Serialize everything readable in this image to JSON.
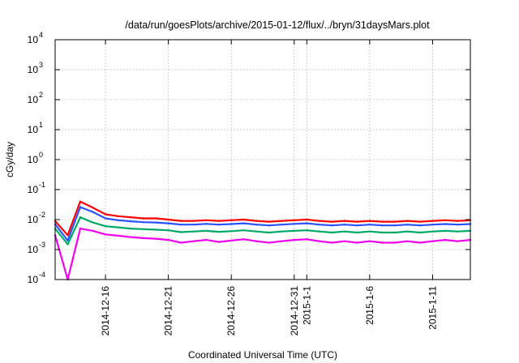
{
  "chart_data": {
    "type": "line",
    "title": "/data/run/goesPlots/archive/2015-01-12/flux/../bryn/31daysMars.plot",
    "xlabel": "Coordinated Universal Time (UTC)",
    "ylabel": "cGy/day",
    "yscale": "log",
    "ylim": [
      0.0001,
      10000
    ],
    "xlim": [
      "2014-12-12",
      "2015-01-14"
    ],
    "grid": true,
    "y_ticks": [
      {
        "value": 0.0001,
        "base": "10",
        "exp": "-4"
      },
      {
        "value": 0.001,
        "base": "10",
        "exp": "-3"
      },
      {
        "value": 0.01,
        "base": "10",
        "exp": "-2"
      },
      {
        "value": 0.1,
        "base": "10",
        "exp": "-1"
      },
      {
        "value": 1,
        "base": "10",
        "exp": "0"
      },
      {
        "value": 10,
        "base": "10",
        "exp": "1"
      },
      {
        "value": 100,
        "base": "10",
        "exp": "2"
      },
      {
        "value": 1000,
        "base": "10",
        "exp": "3"
      },
      {
        "value": 10000,
        "base": "10",
        "exp": "4"
      }
    ],
    "x_ticks": [
      {
        "date": "2014-12-16",
        "label": "2014-12-16"
      },
      {
        "date": "2014-12-21",
        "label": "2014-12-21"
      },
      {
        "date": "2014-12-26",
        "label": "2014-12-26"
      },
      {
        "date": "2014-12-31",
        "label": "2014-12-31"
      },
      {
        "date": "2015-01-01",
        "label": "2015-1-1"
      },
      {
        "date": "2015-01-06",
        "label": "2015-1-6"
      },
      {
        "date": "2015-01-11",
        "label": "2015-1-11"
      }
    ],
    "series": [
      {
        "color": "#ff0000",
        "dates": [
          "2014-12-12",
          "2014-12-13",
          "2014-12-14",
          "2014-12-15",
          "2014-12-16",
          "2014-12-17",
          "2014-12-18",
          "2014-12-19",
          "2014-12-20",
          "2014-12-21",
          "2014-12-22",
          "2014-12-23",
          "2014-12-24",
          "2014-12-25",
          "2014-12-26",
          "2014-12-27",
          "2014-12-28",
          "2014-12-29",
          "2014-12-30",
          "2014-12-31",
          "2015-01-01",
          "2015-01-02",
          "2015-01-03",
          "2015-01-04",
          "2015-01-05",
          "2015-01-06",
          "2015-01-07",
          "2015-01-08",
          "2015-01-09",
          "2015-01-10",
          "2015-01-11",
          "2015-01-12",
          "2015-01-13",
          "2015-01-14"
        ],
        "values": [
          0.009,
          0.003,
          0.04,
          0.025,
          0.015,
          0.013,
          0.012,
          0.011,
          0.011,
          0.01,
          0.009,
          0.009,
          0.0095,
          0.009,
          0.0095,
          0.01,
          0.009,
          0.0085,
          0.009,
          0.0095,
          0.01,
          0.009,
          0.0085,
          0.009,
          0.0085,
          0.009,
          0.0085,
          0.0085,
          0.009,
          0.0085,
          0.009,
          0.0095,
          0.009,
          0.0095
        ]
      },
      {
        "color": "#2a52ff",
        "dates": [
          "2014-12-12",
          "2014-12-13",
          "2014-12-14",
          "2014-12-15",
          "2014-12-16",
          "2014-12-17",
          "2014-12-18",
          "2014-12-19",
          "2014-12-20",
          "2014-12-21",
          "2014-12-22",
          "2014-12-23",
          "2014-12-24",
          "2014-12-25",
          "2014-12-26",
          "2014-12-27",
          "2014-12-28",
          "2014-12-29",
          "2014-12-30",
          "2014-12-31",
          "2015-01-01",
          "2015-01-02",
          "2015-01-03",
          "2015-01-04",
          "2015-01-05",
          "2015-01-06",
          "2015-01-07",
          "2015-01-08",
          "2015-01-09",
          "2015-01-10",
          "2015-01-11",
          "2015-01-12",
          "2015-01-13",
          "2015-01-14"
        ],
        "values": [
          0.007,
          0.002,
          0.026,
          0.018,
          0.011,
          0.0095,
          0.0088,
          0.0082,
          0.008,
          0.0075,
          0.0068,
          0.0068,
          0.0072,
          0.0068,
          0.0071,
          0.0075,
          0.0068,
          0.0064,
          0.0068,
          0.0072,
          0.0075,
          0.0068,
          0.0064,
          0.0068,
          0.0064,
          0.0068,
          0.0064,
          0.0064,
          0.0068,
          0.0064,
          0.0068,
          0.0071,
          0.0068,
          0.0071
        ]
      },
      {
        "color": "#00aa66",
        "dates": [
          "2014-12-12",
          "2014-12-13",
          "2014-12-14",
          "2014-12-15",
          "2014-12-16",
          "2014-12-17",
          "2014-12-18",
          "2014-12-19",
          "2014-12-20",
          "2014-12-21",
          "2014-12-22",
          "2014-12-23",
          "2014-12-24",
          "2014-12-25",
          "2014-12-26",
          "2014-12-27",
          "2014-12-28",
          "2014-12-29",
          "2014-12-30",
          "2014-12-31",
          "2015-01-01",
          "2015-01-02",
          "2015-01-03",
          "2015-01-04",
          "2015-01-05",
          "2015-01-06",
          "2015-01-07",
          "2015-01-08",
          "2015-01-09",
          "2015-01-10",
          "2015-01-11",
          "2015-01-12",
          "2015-01-13",
          "2015-01-14"
        ],
        "values": [
          0.005,
          0.0015,
          0.012,
          0.008,
          0.006,
          0.0055,
          0.005,
          0.0048,
          0.0046,
          0.0044,
          0.0038,
          0.004,
          0.0042,
          0.0039,
          0.0041,
          0.0044,
          0.004,
          0.0037,
          0.004,
          0.0042,
          0.0044,
          0.004,
          0.0037,
          0.004,
          0.0037,
          0.004,
          0.0037,
          0.0037,
          0.004,
          0.0037,
          0.004,
          0.0042,
          0.004,
          0.0042
        ]
      },
      {
        "color": "#ee00ee",
        "dates": [
          "2014-12-12",
          "2014-12-13",
          "2014-12-14",
          "2014-12-15",
          "2014-12-16",
          "2014-12-17",
          "2014-12-18",
          "2014-12-19",
          "2014-12-20",
          "2014-12-21",
          "2014-12-22",
          "2014-12-23",
          "2014-12-24",
          "2014-12-25",
          "2014-12-26",
          "2014-12-27",
          "2014-12-28",
          "2014-12-29",
          "2014-12-30",
          "2014-12-31",
          "2015-01-01",
          "2015-01-02",
          "2015-01-03",
          "2015-01-04",
          "2015-01-05",
          "2015-01-06",
          "2015-01-07",
          "2015-01-08",
          "2015-01-09",
          "2015-01-10",
          "2015-01-11",
          "2015-01-12",
          "2015-01-13",
          "2015-01-14"
        ],
        "values": [
          0.003,
          0.0001,
          0.005,
          0.0042,
          0.0032,
          0.0029,
          0.0026,
          0.0024,
          0.0023,
          0.0021,
          0.0017,
          0.0019,
          0.0021,
          0.0018,
          0.002,
          0.0022,
          0.0019,
          0.0017,
          0.0019,
          0.0021,
          0.0022,
          0.0019,
          0.0017,
          0.0019,
          0.0017,
          0.0019,
          0.0017,
          0.0017,
          0.0019,
          0.0017,
          0.0019,
          0.0021,
          0.0019,
          0.0021
        ]
      }
    ]
  }
}
